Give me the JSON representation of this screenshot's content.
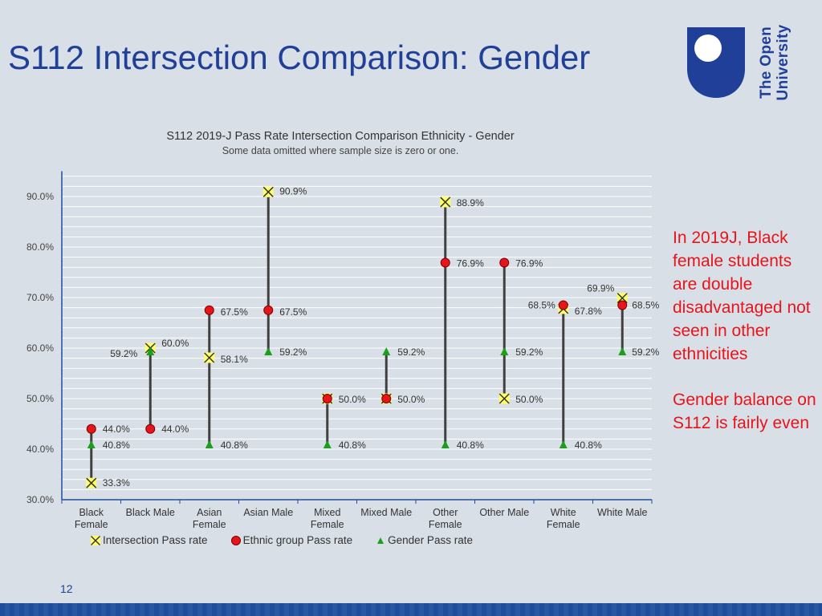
{
  "slide": {
    "title": "S112 Intersection Comparison: Gender",
    "page_number": "12",
    "logo_text": "The Open University",
    "annotations": [
      "In 2019J, Black female students are double disadvantaged not seen in other ethnicities",
      "Gender balance on S112 is fairly even"
    ]
  },
  "colors": {
    "title": "#1f3f99",
    "annotation": "#e8141b",
    "intersection_fill": "#ffff66",
    "intersection_cross": "#333333",
    "ethnic_fill": "#e8141b",
    "gender_fill": "#1aa01a",
    "line": "#404040"
  },
  "chart_data": {
    "type": "scatter",
    "title": "S112 2019-J Pass Rate Intersection Comparison Ethnicity - Gender",
    "subtitle": "Some data omitted where sample size is zero or one.",
    "ylim": [
      30,
      95
    ],
    "yticks": [
      "30.0%",
      "40.0%",
      "50.0%",
      "60.0%",
      "70.0%",
      "80.0%",
      "90.0%"
    ],
    "grid": true,
    "legend_position": "bottom",
    "categories": [
      [
        "Black",
        "Female"
      ],
      [
        "Black Male"
      ],
      [
        "Asian",
        "Female"
      ],
      [
        "Asian Male"
      ],
      [
        "Mixed",
        "Female"
      ],
      [
        "Mixed Male"
      ],
      [
        "Other",
        "Female"
      ],
      [
        "Other Male"
      ],
      [
        "White",
        "Female"
      ],
      [
        "White Male"
      ]
    ],
    "series": [
      {
        "name": "Intersection Pass rate",
        "marker": "x",
        "values": [
          33.3,
          60.0,
          58.1,
          90.9,
          50.0,
          50.0,
          88.9,
          50.0,
          67.8,
          69.9
        ]
      },
      {
        "name": "Ethnic group Pass rate",
        "marker": "circle",
        "values": [
          44.0,
          44.0,
          67.5,
          67.5,
          50.0,
          50.0,
          76.9,
          76.9,
          68.5,
          68.5
        ]
      },
      {
        "name": "Gender Pass rate",
        "marker": "triangle",
        "values": [
          40.8,
          59.2,
          40.8,
          59.2,
          40.8,
          59.2,
          40.8,
          59.2,
          40.8,
          59.2
        ]
      }
    ],
    "data_labels": [
      {
        "category": 0,
        "series": 0,
        "text": "33.3%"
      },
      {
        "category": 0,
        "series": 1,
        "text": "44.0%"
      },
      {
        "category": 0,
        "series": 2,
        "text": "40.8%"
      },
      {
        "category": 1,
        "series": 0,
        "text": "60.0%"
      },
      {
        "category": 1,
        "series": 1,
        "text": "44.0%"
      },
      {
        "category": 1,
        "series": 2,
        "text": "59.2%"
      },
      {
        "category": 2,
        "series": 0,
        "text": "58.1%"
      },
      {
        "category": 2,
        "series": 1,
        "text": "67.5%"
      },
      {
        "category": 2,
        "series": 2,
        "text": "40.8%"
      },
      {
        "category": 3,
        "series": 0,
        "text": "90.9%"
      },
      {
        "category": 3,
        "series": 1,
        "text": "67.5%"
      },
      {
        "category": 3,
        "series": 2,
        "text": "59.2%"
      },
      {
        "category": 4,
        "series": 1,
        "text": "50.0%"
      },
      {
        "category": 4,
        "series": 2,
        "text": "40.8%"
      },
      {
        "category": 5,
        "series": 1,
        "text": "50.0%"
      },
      {
        "category": 5,
        "series": 2,
        "text": "59.2%"
      },
      {
        "category": 6,
        "series": 0,
        "text": "88.9%"
      },
      {
        "category": 6,
        "series": 1,
        "text": "76.9%"
      },
      {
        "category": 6,
        "series": 2,
        "text": "40.8%"
      },
      {
        "category": 7,
        "series": 0,
        "text": "50.0%"
      },
      {
        "category": 7,
        "series": 1,
        "text": "76.9%"
      },
      {
        "category": 7,
        "series": 2,
        "text": "59.2%"
      },
      {
        "category": 8,
        "series": 0,
        "text": "67.8%"
      },
      {
        "category": 8,
        "series": 1,
        "text": "68.5%"
      },
      {
        "category": 8,
        "series": 2,
        "text": "40.8%"
      },
      {
        "category": 9,
        "series": 0,
        "text": "69.9%"
      },
      {
        "category": 9,
        "series": 1,
        "text": "68.5%"
      },
      {
        "category": 9,
        "series": 2,
        "text": "59.2%"
      }
    ]
  }
}
